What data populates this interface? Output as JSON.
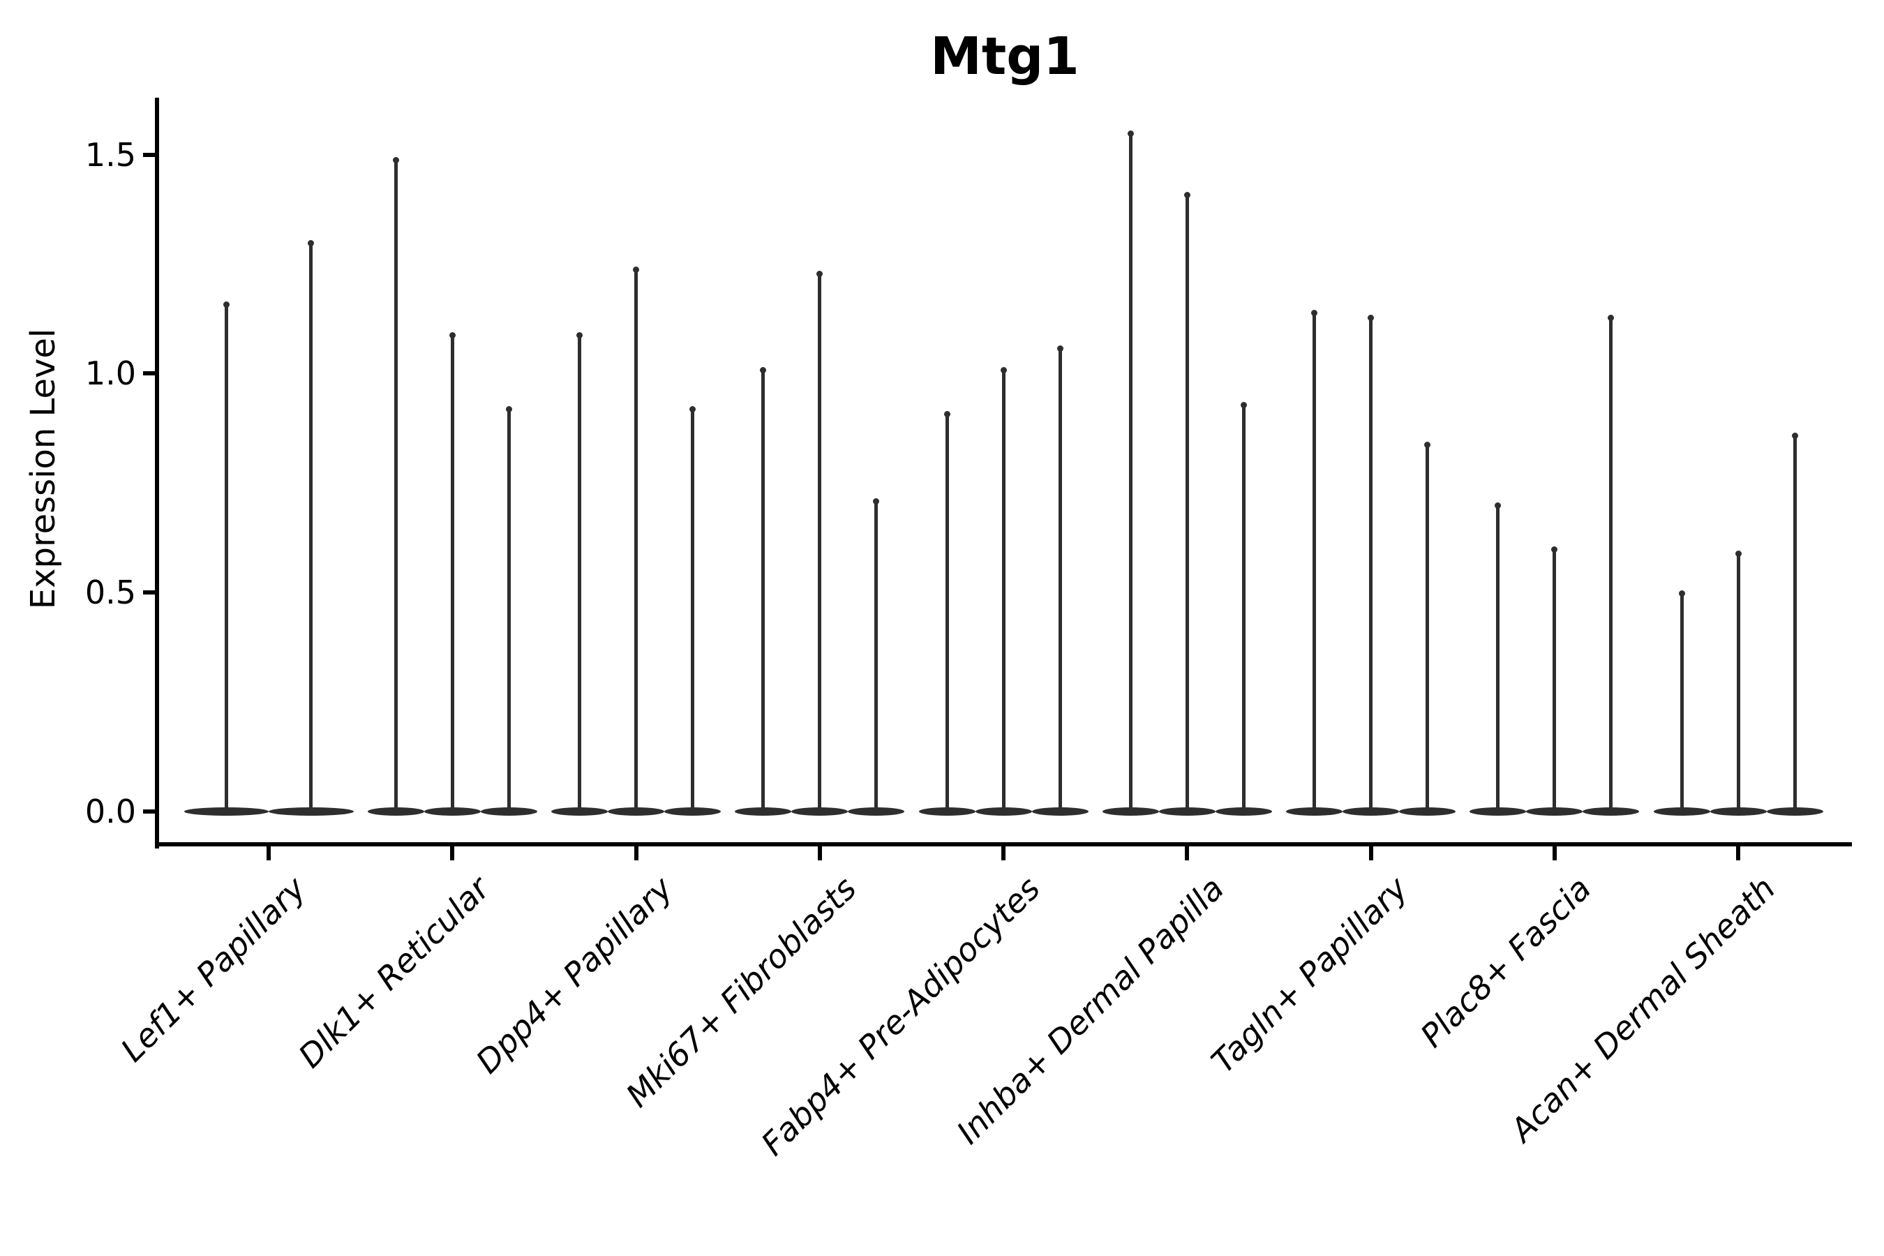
{
  "title": "Mtg1",
  "ylabel": "Expression Level",
  "chart_data": {
    "type": "violin",
    "title": "Mtg1",
    "xlabel": "",
    "ylabel": "Expression Level",
    "ylim": [
      -0.08,
      1.63
    ],
    "yticks": [
      0.0,
      0.5,
      1.0,
      1.5
    ],
    "grid": false,
    "legend": false,
    "violin_color": "#2e2e2e",
    "axis_color": "#000000",
    "background_color": "#ffffff",
    "description": "Thin violins per cell type; density mass concentrated at 0 (flat lens at baseline) with narrow spikes reaching each listed maximum expression value.",
    "categories": [
      "Lef1+ Papillary",
      "Dlk1+ Reticular",
      "Dpp4+ Papillary",
      "Mki67+ Fibroblasts",
      "Fabp4+ Pre-Adipocytes",
      "Inhba+ Dermal Papilla",
      "Tagln+ Papillary",
      "Plac8+ Fascia",
      "Acan+ Dermal Sheath"
    ],
    "series": [
      {
        "category": "Lef1+ Papillary",
        "violin_min": 0.0,
        "violin_maxima": [
          1.16,
          1.3
        ]
      },
      {
        "category": "Dlk1+ Reticular",
        "violin_min": 0.0,
        "violin_maxima": [
          1.49,
          1.09,
          0.92
        ]
      },
      {
        "category": "Dpp4+ Papillary",
        "violin_min": 0.0,
        "violin_maxima": [
          1.09,
          1.24,
          0.92
        ]
      },
      {
        "category": "Mki67+ Fibroblasts",
        "violin_min": 0.0,
        "violin_maxima": [
          1.01,
          1.23,
          0.71
        ]
      },
      {
        "category": "Fabp4+ Pre-Adipocytes",
        "violin_min": 0.0,
        "violin_maxima": [
          0.91,
          1.01,
          1.06
        ]
      },
      {
        "category": "Inhba+ Dermal Papilla",
        "violin_min": 0.0,
        "violin_maxima": [
          1.55,
          1.41,
          0.93
        ]
      },
      {
        "category": "Tagln+ Papillary",
        "violin_min": 0.0,
        "violin_maxima": [
          1.14,
          1.13,
          0.84
        ]
      },
      {
        "category": "Plac8+ Fascia",
        "violin_min": 0.0,
        "violin_maxima": [
          0.7,
          0.6,
          1.13
        ]
      },
      {
        "category": "Acan+ Dermal Sheath",
        "violin_min": 0.0,
        "violin_maxima": [
          0.5,
          0.59,
          0.86
        ]
      }
    ]
  }
}
